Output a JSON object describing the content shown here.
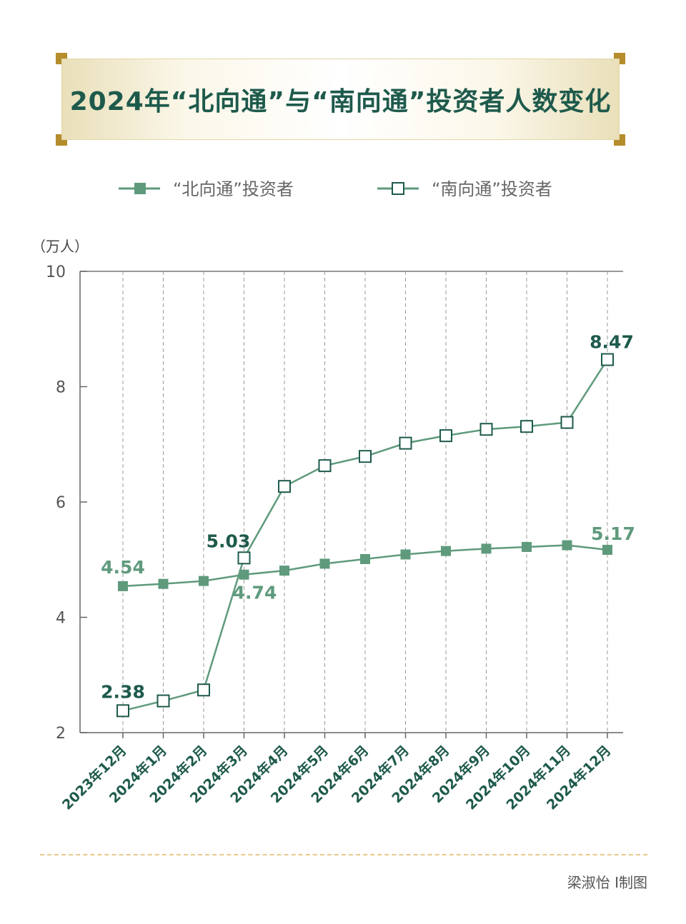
{
  "title": "2024年“北向通”与“南向通”投资者人数变化",
  "credit": "梁淑怡 Ⅰ制图",
  "chart_data": {
    "type": "line",
    "ylabel": "（万人）",
    "ylim": [
      2,
      10
    ],
    "yticks": [
      2,
      4,
      6,
      8,
      10
    ],
    "grid": "vertical-dashed",
    "legend_placement": "top",
    "categories": [
      "2023年12月",
      "2024年1月",
      "2024年2月",
      "2024年3月",
      "2024年4月",
      "2024年5月",
      "2024年6月",
      "2024年7月",
      "2024年8月",
      "2024年9月",
      "2024年10月",
      "2024年11月",
      "2024年12月"
    ],
    "series": [
      {
        "name": "“北向通”投资者",
        "marker": "filled-square",
        "color": "#5f9a7c",
        "values": [
          4.54,
          4.58,
          4.63,
          4.74,
          4.81,
          4.93,
          5.01,
          5.09,
          5.15,
          5.19,
          5.22,
          5.25,
          5.17
        ],
        "labels": [
          {
            "index": 0,
            "text": "4.54",
            "color": "#5f9a7c"
          },
          {
            "index": 3,
            "text": "4.74",
            "color": "#5f9a7c"
          },
          {
            "index": 12,
            "text": "5.17",
            "color": "#5f9a7c"
          }
        ]
      },
      {
        "name": "“南向通”投资者",
        "marker": "hollow-square",
        "color": "#1e5a4c",
        "line_color": "#5f9a7c",
        "values": [
          2.38,
          2.55,
          2.74,
          5.03,
          6.27,
          6.63,
          6.79,
          7.02,
          7.15,
          7.26,
          7.31,
          7.38,
          8.47
        ],
        "labels": [
          {
            "index": 0,
            "text": "2.38",
            "color": "#1e5a4c"
          },
          {
            "index": 3,
            "text": "5.03",
            "color": "#1e5a4c"
          },
          {
            "index": 12,
            "text": "8.47",
            "color": "#1e5a4c"
          }
        ]
      }
    ]
  }
}
